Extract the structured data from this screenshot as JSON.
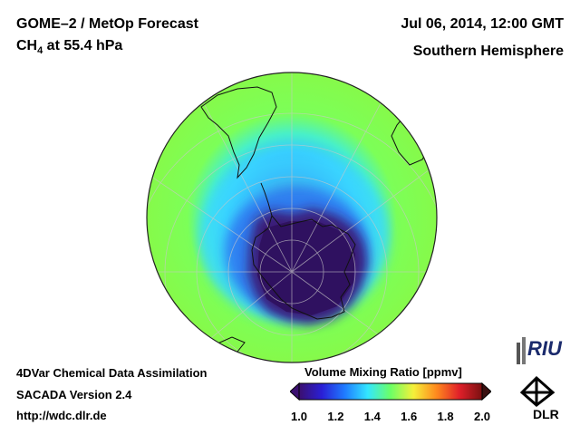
{
  "header": {
    "title": "GOME–2 / MetOp Forecast",
    "species_main": "CH",
    "species_sub": "4",
    "species_level": " at 55.4 hPa",
    "datetime": "Jul 06, 2014, 12:00 GMT",
    "hemisphere": "Southern Hemisphere"
  },
  "footer": {
    "line1": "4DVar Chemical Data Assimilation",
    "line2": "SACADA Version 2.4",
    "line3": "http://wdc.dlr.de"
  },
  "colorbar": {
    "title": "Volume Mixing Ratio [ppmv]",
    "ticks": [
      "1.0",
      "1.2",
      "1.4",
      "1.6",
      "1.8",
      "2.0"
    ],
    "min": 1.0,
    "max": 2.0,
    "colors": [
      "#3b0f6f",
      "#2a1fd6",
      "#1f7cff",
      "#33e6ff",
      "#6cff66",
      "#f5f03a",
      "#ff8a1e",
      "#e0202a",
      "#7a1010"
    ]
  },
  "map": {
    "projection": "orthographic south-polar",
    "outer_value": 1.55,
    "ring_value": 1.4,
    "vortex_value": 1.05
  },
  "logos": {
    "riu": "RIU",
    "dlr": "DLR"
  }
}
